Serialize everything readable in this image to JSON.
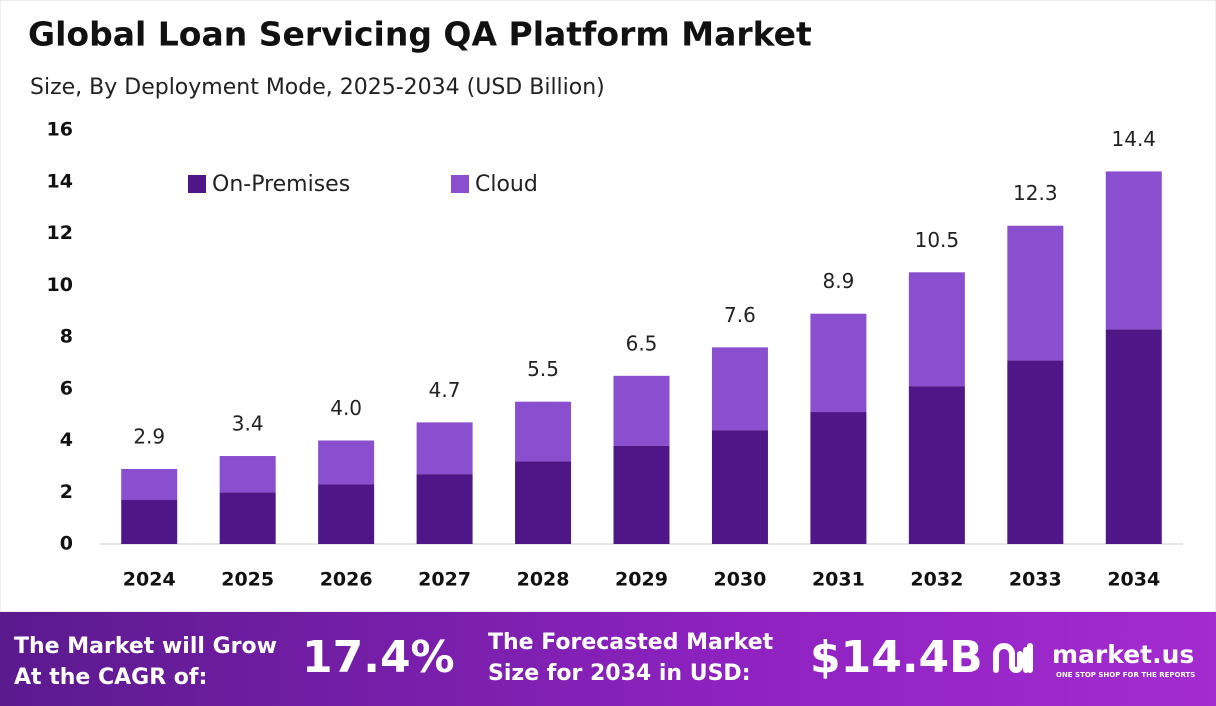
{
  "chart_data": {
    "type": "stacked_bar",
    "title": "Global Loan Servicing QA Platform Market",
    "subtitle": "Size, By Deployment Mode, 2025-2034 (USD Billion)",
    "categories": [
      "2024",
      "2025",
      "2026",
      "2027",
      "2028",
      "2029",
      "2030",
      "2031",
      "2032",
      "2033",
      "2034"
    ],
    "series": [
      {
        "name": "On-Premises",
        "color": "#4e1686",
        "values": [
          1.7,
          2.0,
          2.3,
          2.7,
          3.2,
          3.8,
          4.4,
          5.1,
          6.1,
          7.1,
          8.3
        ]
      },
      {
        "name": "Cloud",
        "color": "#8a4fcf",
        "values": [
          1.2,
          1.4,
          1.7,
          2.0,
          2.3,
          2.7,
          3.2,
          3.8,
          4.4,
          5.2,
          6.1
        ]
      }
    ],
    "totals": [
      2.9,
      3.4,
      4.0,
      4.7,
      5.5,
      6.5,
      7.6,
      8.9,
      10.5,
      12.3,
      14.4
    ],
    "total_labels": [
      "2.9",
      "3.4",
      "4.0",
      "4.7",
      "5.5",
      "6.5",
      "7.6",
      "8.9",
      "10.5",
      "12.3",
      "14.4"
    ],
    "ylim": [
      0,
      16
    ],
    "yticks": [
      0,
      2,
      4,
      6,
      8,
      10,
      12,
      14,
      16
    ],
    "grid": false,
    "legend": "top-left"
  },
  "footer": {
    "cagr_text": [
      "The Market will Grow",
      "At the CAGR of:"
    ],
    "cagr": "17.4%",
    "forecast_text": [
      "The Forecasted Market",
      "Size for 2034 in USD:"
    ],
    "forecast": "$14.4B",
    "brand": "market.us",
    "tagline": "ONE STOP SHOP FOR THE REPORTS"
  }
}
